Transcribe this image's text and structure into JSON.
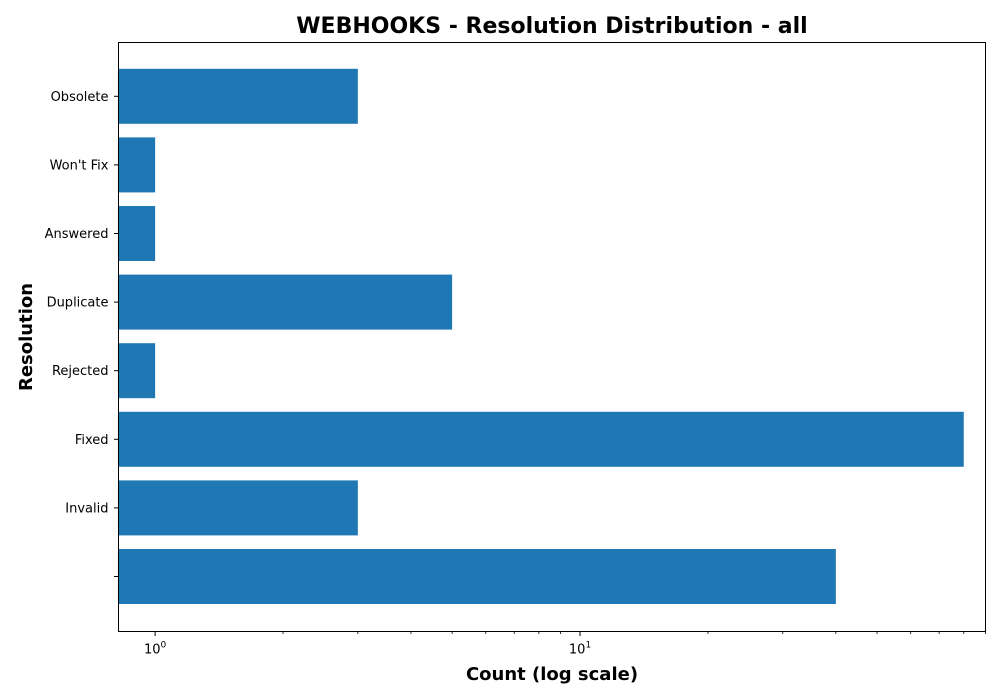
{
  "chart_data": {
    "type": "bar",
    "orientation": "horizontal",
    "title": "WEBHOOKS - Resolution Distribution - all",
    "xlabel": "Count (log scale)",
    "ylabel": "Resolution",
    "x_scale": "log",
    "xlim": [
      0.82,
      90
    ],
    "x_major_ticks": [
      {
        "value": 1,
        "base": "10",
        "exp": "0"
      },
      {
        "value": 10,
        "base": "10",
        "exp": "1"
      }
    ],
    "categories": [
      "",
      "Invalid",
      "Fixed",
      "Rejected",
      "Duplicate",
      "Answered",
      "Won't Fix",
      "Obsolete"
    ],
    "values": [
      40,
      3,
      80,
      1,
      5,
      1,
      1,
      3
    ],
    "bar_color": "#1f77b4",
    "grid": false,
    "legend": null
  }
}
